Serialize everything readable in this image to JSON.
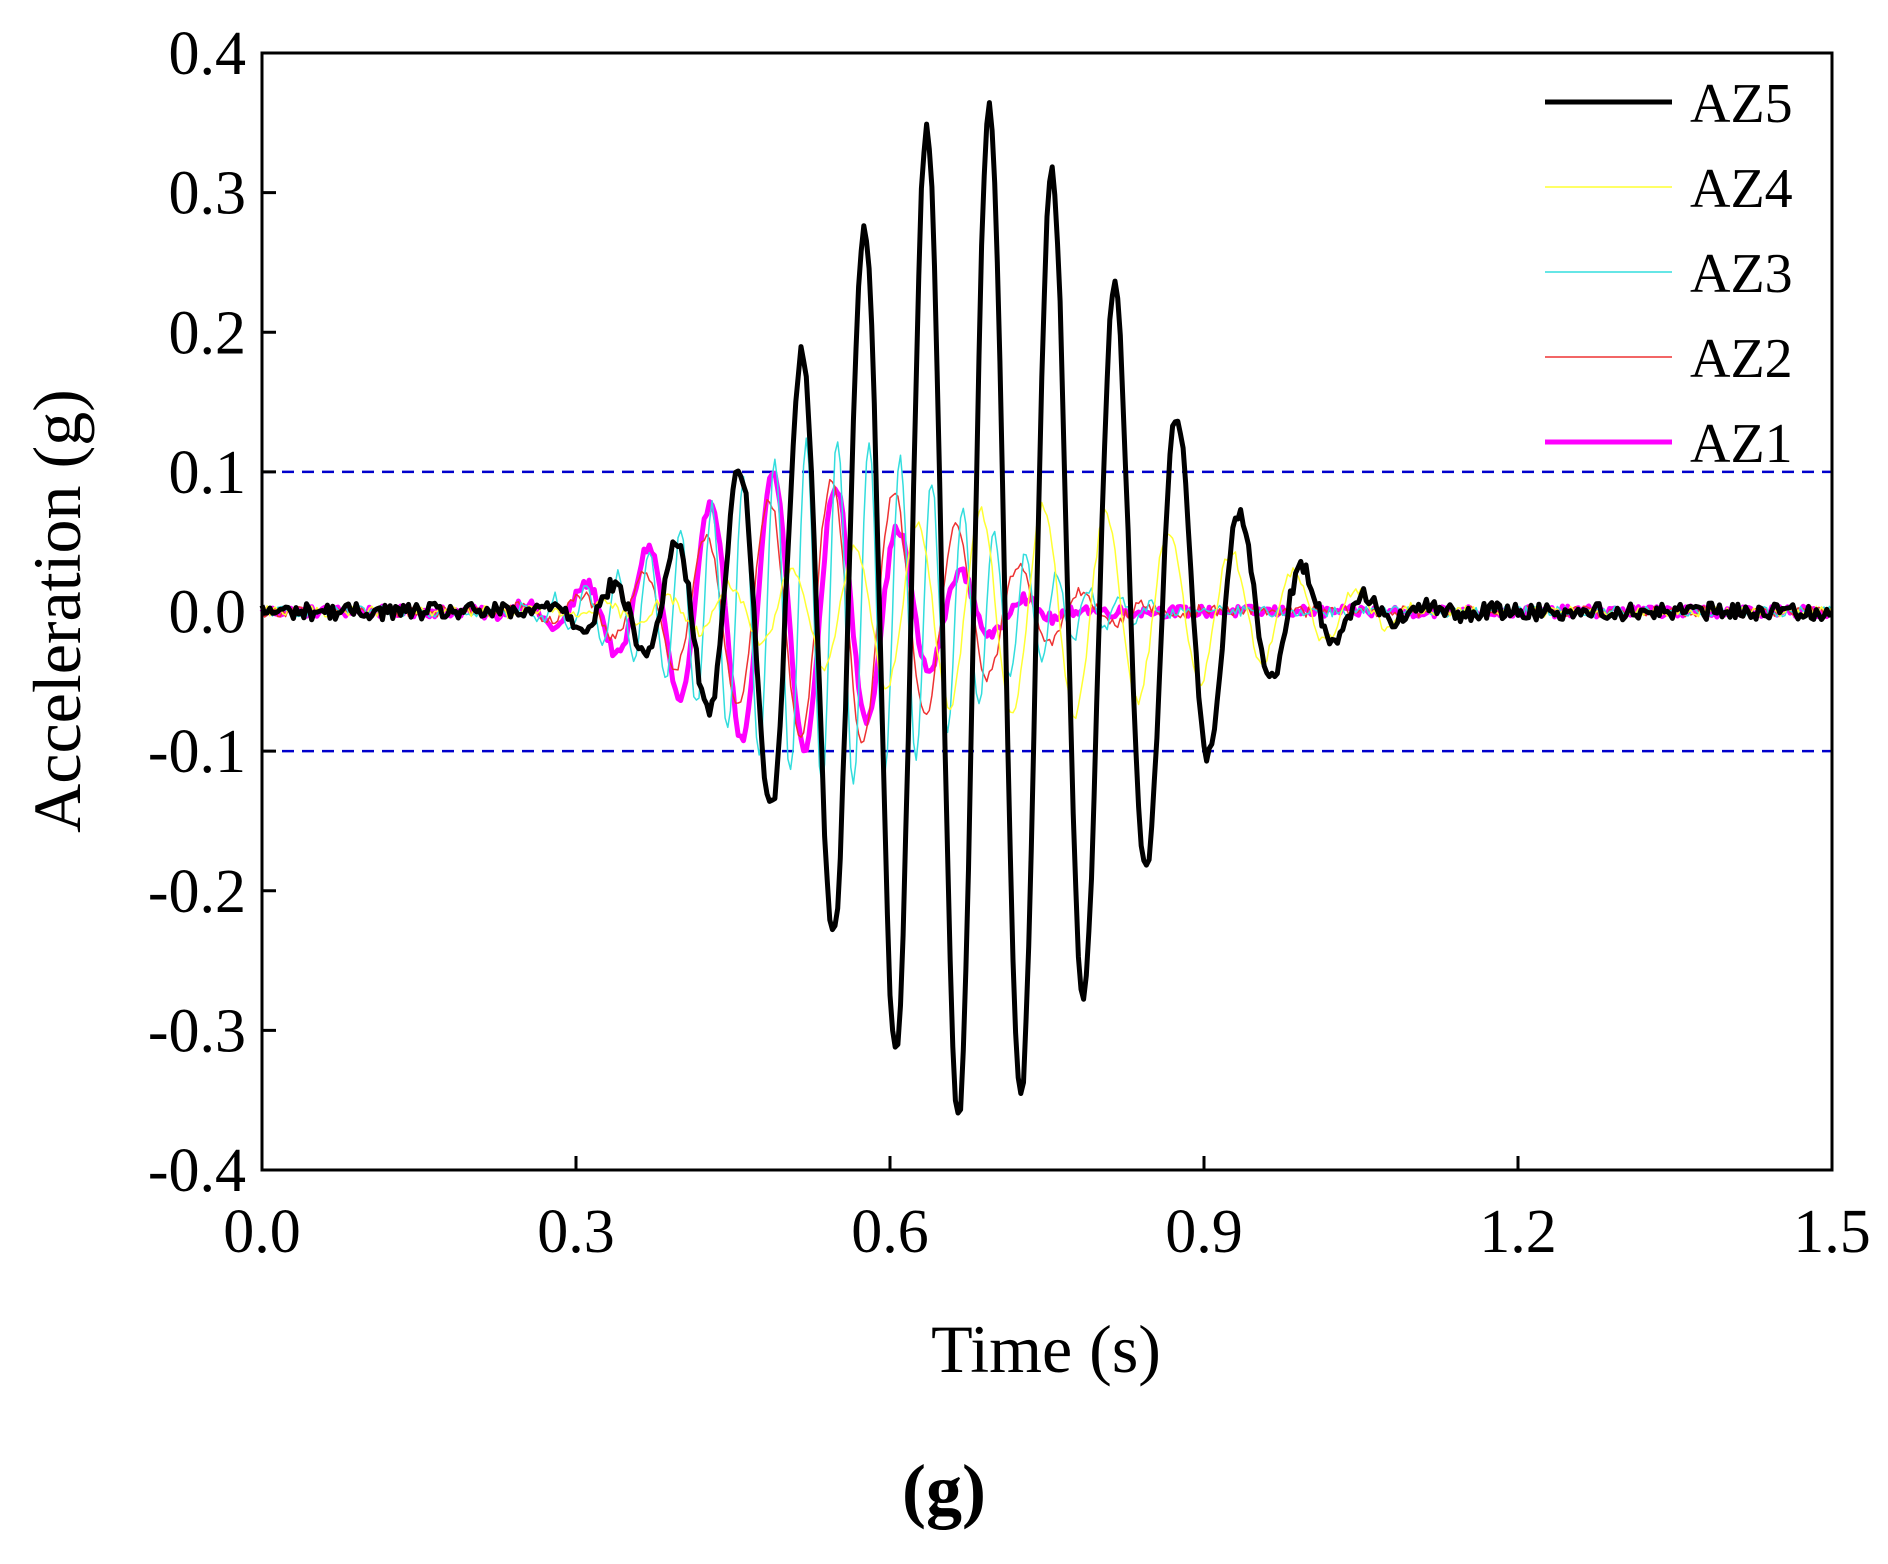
{
  "chart_data": {
    "type": "line",
    "xlabel": "Time (s)",
    "ylabel": "Acceleration (g)",
    "panel_label": "(g)",
    "xlim": [
      0.0,
      1.5
    ],
    "ylim": [
      -0.4,
      0.4
    ],
    "xticks": [
      "0.0",
      "0.3",
      "0.6",
      "0.9",
      "1.2",
      "1.5"
    ],
    "yticks": [
      "-0.4",
      "-0.3",
      "-0.2",
      "-0.1",
      "0.0",
      "0.1",
      "0.2",
      "0.3",
      "0.4"
    ],
    "grid": false,
    "legend_position": "top-right",
    "reference_lines": [
      {
        "y": 0.1,
        "color": "#0000cc",
        "style": "dashed"
      },
      {
        "y": -0.1,
        "color": "#0000cc",
        "style": "dashed"
      }
    ],
    "series": [
      {
        "name": "AZ5",
        "color": "#000000",
        "width": 5,
        "envelope": {
          "amp": 0.365,
          "center": 0.68,
          "width": 0.2,
          "period": 0.06,
          "phase": 0.0,
          "start": 0.22,
          "end": 1.22,
          "noise": 0.006
        }
      },
      {
        "name": "AZ4",
        "color": "#ffff33",
        "width": 1.5,
        "envelope": {
          "amp": 0.075,
          "center": 0.74,
          "width": 0.25,
          "period": 0.06,
          "phase": 0.9,
          "start": 0.2,
          "end": 1.12,
          "noise": 0.004
        }
      },
      {
        "name": "AZ3",
        "color": "#33dddd",
        "width": 1.5,
        "envelope": {
          "amp": 0.125,
          "center": 0.55,
          "width": 0.17,
          "period": 0.03,
          "phase": 1.6,
          "start": 0.2,
          "end": 1.05,
          "noise": 0.004
        }
      },
      {
        "name": "AZ2",
        "color": "#ee3333",
        "width": 1.5,
        "envelope": {
          "amp": 0.095,
          "center": 0.55,
          "width": 0.17,
          "period": 0.06,
          "phase": 2.2,
          "start": 0.2,
          "end": 1.0,
          "noise": 0.004
        }
      },
      {
        "name": "AZ1",
        "color": "#ff00ff",
        "width": 5,
        "envelope": {
          "amp": 0.1,
          "center": 0.5,
          "width": 0.15,
          "period": 0.06,
          "phase": 2.8,
          "start": 0.18,
          "end": 0.82,
          "noise": 0.004
        }
      }
    ]
  }
}
